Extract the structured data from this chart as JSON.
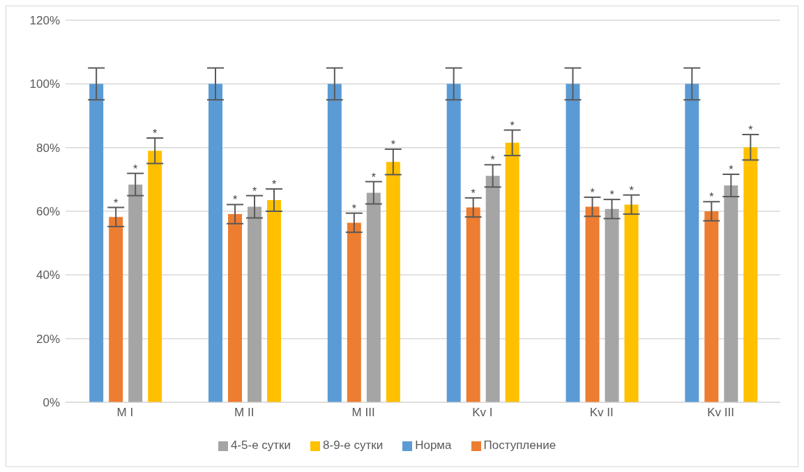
{
  "chart_data": {
    "type": "bar",
    "categories": [
      "M I",
      "M II",
      "M III",
      "Kv I",
      "Kv II",
      "Kv III"
    ],
    "series": [
      {
        "name": "Норма",
        "color": "#5b9bd5",
        "values": [
          100,
          100,
          100,
          100,
          100,
          100
        ],
        "errors": [
          5,
          5,
          5,
          5,
          5,
          5
        ]
      },
      {
        "name": "Поступление",
        "color": "#ed7d31",
        "values": [
          58.2,
          59.1,
          56.4,
          61.2,
          61.4,
          60.0
        ],
        "errors": [
          3,
          3,
          3,
          3,
          3,
          3
        ],
        "value_labels": [
          "*",
          "*",
          "*",
          "*",
          "*",
          "*"
        ]
      },
      {
        "name": "4-5-е сутки",
        "color": "#a5a5a5",
        "values": [
          68.4,
          61.4,
          65.8,
          71.1,
          60.7,
          68.1
        ],
        "errors": [
          3.5,
          3.5,
          3.5,
          3.5,
          3,
          3.5
        ],
        "value_labels": [
          "*",
          "*",
          "*",
          "*",
          "*",
          "*"
        ]
      },
      {
        "name": "8-9-е сутки",
        "color": "#ffc000",
        "values": [
          79.0,
          63.5,
          75.5,
          81.5,
          62.1,
          80.1
        ],
        "errors": [
          4,
          3.5,
          4,
          4,
          3,
          4
        ],
        "value_labels": [
          "*",
          "*",
          "*",
          "*",
          "*",
          "*"
        ]
      }
    ],
    "ylim": [
      0,
      120
    ],
    "yticks": [
      {
        "value": 0,
        "label": "0%"
      },
      {
        "value": 20,
        "label": "20%"
      },
      {
        "value": 40,
        "label": "40%"
      },
      {
        "value": 60,
        "label": "60%"
      },
      {
        "value": 80,
        "label": "80%"
      },
      {
        "value": 100,
        "label": "100%"
      },
      {
        "value": 120,
        "label": "120%"
      }
    ],
    "grid": "y",
    "legend": "bottom"
  }
}
